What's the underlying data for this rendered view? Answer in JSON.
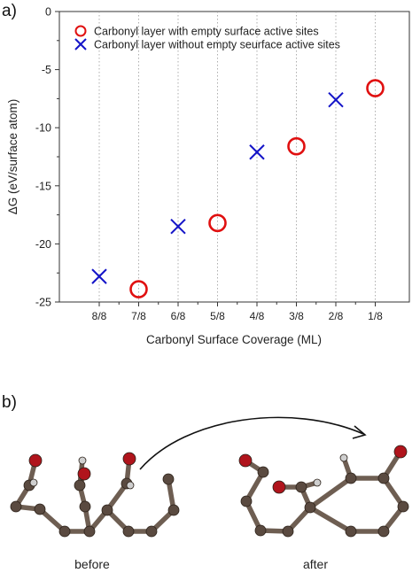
{
  "panel_labels": {
    "a": "a)",
    "b": "b)"
  },
  "chart_data": {
    "type": "scatter",
    "title": "",
    "xlabel": "Carbonyl Surface Coverage (ML)",
    "ylabel": "ΔG (eV/surface atom)",
    "categories": [
      "8/8",
      "7/8",
      "6/8",
      "5/8",
      "4/8",
      "3/8",
      "2/8",
      "1/8"
    ],
    "y_ticks": [
      "0",
      "-5",
      "-10",
      "-15",
      "-20",
      "-25"
    ],
    "y_tick_values": [
      0,
      -5,
      -10,
      -15,
      -20,
      -25
    ],
    "ylim": [
      -25,
      0
    ],
    "grid": "vertical dotted at categories",
    "legend_position": "top-left",
    "series": [
      {
        "name": "Carbonyl layer with empty surface active sites",
        "marker": "circle",
        "color": "#e01010",
        "points": [
          {
            "x": "7/8",
            "y": -23.9
          },
          {
            "x": "5/8",
            "y": -18.2
          },
          {
            "x": "3/8",
            "y": -11.6
          },
          {
            "x": "1/8",
            "y": -6.6
          }
        ]
      },
      {
        "name": "Carbonyl layer without empty seurface active sites",
        "marker": "cross",
        "color": "#1414c8",
        "points": [
          {
            "x": "8/8",
            "y": -22.8
          },
          {
            "x": "6/8",
            "y": -18.5
          },
          {
            "x": "4/8",
            "y": -12.1
          },
          {
            "x": "2/8",
            "y": -7.6
          }
        ]
      }
    ]
  },
  "illustration": {
    "before_label": "before",
    "after_label": "after",
    "colors": {
      "carbon": "#5a4a40",
      "oxygen": "#b0141c",
      "hydrogen": "#cfcfcf",
      "bond": "#6e5e52"
    }
  }
}
